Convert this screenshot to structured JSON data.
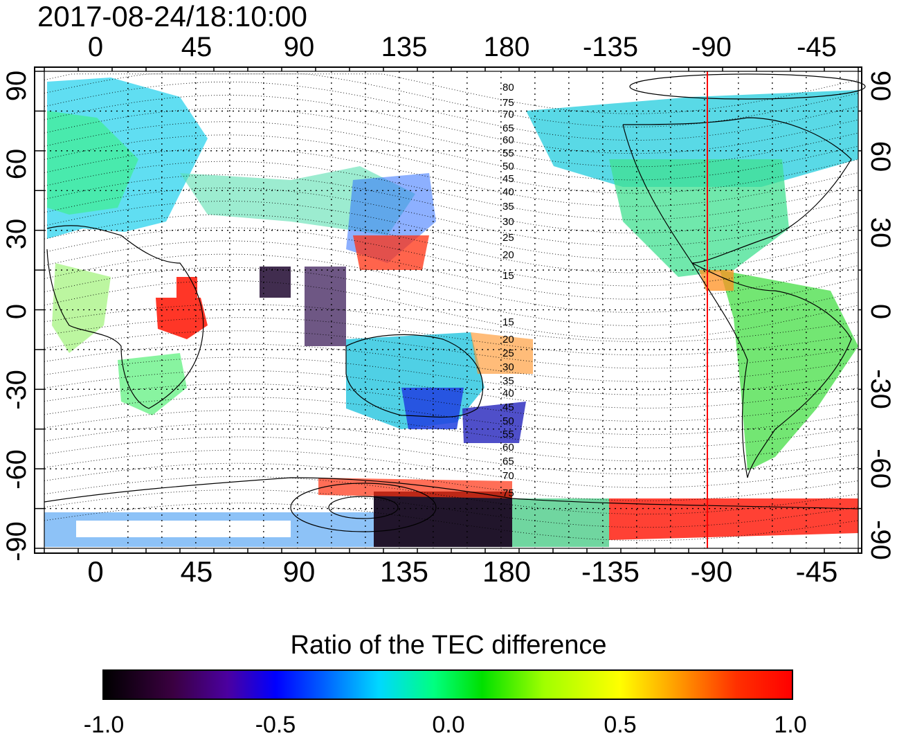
{
  "title": "2017-08-24/18:10:00",
  "map": {
    "longitude_ticks_top": [
      "0",
      "45",
      "90",
      "135",
      "180",
      "-135",
      "-90",
      "-45"
    ],
    "longitude_ticks_bottom": [
      "0",
      "45",
      "90",
      "135",
      "180",
      "-135",
      "-90",
      "-45"
    ],
    "latitude_ticks_left": [
      "90",
      "60",
      "30",
      "0",
      "-30",
      "-60",
      "-90"
    ],
    "latitude_ticks_right": [
      "90",
      "60",
      "30",
      "0",
      "-30",
      "-60",
      "-90"
    ],
    "contour_labels_north": [
      "80",
      "75",
      "70",
      "65",
      "60",
      "55",
      "50",
      "45",
      "40",
      "35",
      "30",
      "25",
      "20",
      "15"
    ],
    "contour_labels_south": [
      "15",
      "20",
      "25",
      "30",
      "35",
      "40",
      "45",
      "50",
      "55",
      "60",
      "65",
      "70",
      "75"
    ],
    "marker_longitude": -90,
    "marker_color": "#ff0000"
  },
  "colorbar": {
    "title": "Ratio of the TEC difference",
    "ticks": [
      "-1.0",
      "-0.5",
      "0.0",
      "0.5",
      "1.0"
    ],
    "colors": [
      "#000000",
      "#4b00a0",
      "#0000ff",
      "#00d8ff",
      "#00ff80",
      "#00e000",
      "#ffff00",
      "#ffa000",
      "#ff0000"
    ]
  }
}
